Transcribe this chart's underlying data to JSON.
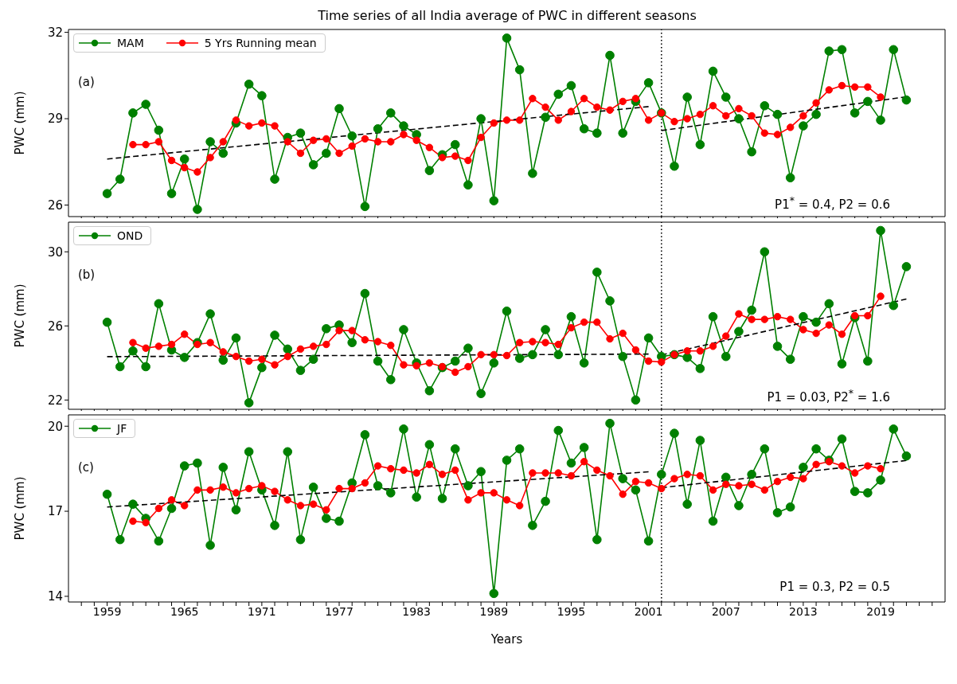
{
  "chart_data": [
    {
      "type": "line",
      "title": "Time series of all India average of PWC in different seasons",
      "ylabel": "PWC (mm)",
      "x": [
        1959,
        1960,
        1961,
        1962,
        1963,
        1964,
        1965,
        1966,
        1967,
        1968,
        1969,
        1970,
        1971,
        1972,
        1973,
        1974,
        1975,
        1976,
        1977,
        1978,
        1979,
        1980,
        1981,
        1982,
        1983,
        1984,
        1985,
        1986,
        1987,
        1988,
        1989,
        1990,
        1991,
        1992,
        1993,
        1994,
        1995,
        1996,
        1997,
        1998,
        1999,
        2000,
        2001,
        2002,
        2003,
        2004,
        2005,
        2006,
        2007,
        2008,
        2009,
        2010,
        2011,
        2012,
        2013,
        2014,
        2015,
        2016,
        2017,
        2018,
        2019,
        2020,
        2021
      ],
      "series": [
        {
          "name": "MAM",
          "color": "#008000",
          "marker": "circle",
          "values": [
            26.4,
            26.9,
            29.2,
            29.5,
            28.6,
            26.4,
            27.6,
            25.85,
            28.2,
            27.8,
            28.85,
            30.2,
            29.8,
            26.9,
            28.35,
            28.5,
            27.4,
            27.8,
            29.35,
            28.4,
            25.95,
            28.65,
            29.2,
            28.75,
            28.45,
            27.2,
            27.75,
            28.1,
            26.7,
            29.0,
            26.15,
            31.8,
            30.7,
            27.1,
            29.05,
            29.85,
            30.15,
            28.65,
            28.5,
            31.2,
            28.5,
            29.6,
            30.25,
            29.2,
            27.35,
            29.75,
            28.1,
            30.65,
            29.75,
            29.0,
            27.85,
            29.45,
            29.15,
            26.95,
            28.75,
            29.15,
            31.35,
            31.4,
            29.2,
            29.6,
            28.95,
            31.4,
            29.65
          ]
        },
        {
          "name": "5 Yrs Running mean",
          "color": "#ff0000",
          "marker": "circle",
          "x": [
            1961,
            1962,
            1963,
            1964,
            1965,
            1966,
            1967,
            1968,
            1969,
            1970,
            1971,
            1972,
            1973,
            1974,
            1975,
            1976,
            1977,
            1978,
            1979,
            1980,
            1981,
            1982,
            1983,
            1984,
            1985,
            1986,
            1987,
            1988,
            1989,
            1990,
            1991,
            1992,
            1993,
            1994,
            1995,
            1996,
            1997,
            1998,
            1999,
            2000,
            2001,
            2002,
            2003,
            2004,
            2005,
            2006,
            2007,
            2008,
            2009,
            2010,
            2011,
            2012,
            2013,
            2014,
            2015,
            2016,
            2017,
            2018,
            2019
          ],
          "values": [
            28.1,
            28.1,
            28.2,
            27.55,
            27.3,
            27.15,
            27.65,
            28.2,
            28.95,
            28.75,
            28.85,
            28.75,
            28.2,
            27.8,
            28.25,
            28.3,
            27.8,
            28.05,
            28.3,
            28.2,
            28.2,
            28.45,
            28.25,
            28.0,
            27.65,
            27.7,
            27.55,
            28.35,
            28.85,
            28.95,
            28.95,
            29.7,
            29.4,
            28.95,
            29.25,
            29.7,
            29.4,
            29.3,
            29.6,
            29.7,
            28.95,
            29.2,
            28.9,
            29.0,
            29.15,
            29.45,
            29.1,
            29.35,
            29.1,
            28.5,
            28.45,
            28.7,
            29.1,
            29.55,
            30.0,
            30.15,
            30.1,
            30.1,
            29.75
          ]
        },
        {
          "color": "#000000",
          "marker": "none",
          "line_style": "dashed",
          "x": [
            1959,
            2001
          ],
          "values": [
            27.6,
            29.42
          ]
        },
        {
          "color": "#000000",
          "marker": "none",
          "line_style": "dashed",
          "x": [
            2002,
            2021
          ],
          "values": [
            28.59,
            29.76
          ]
        }
      ],
      "ylim": [
        25.6,
        32.1
      ],
      "yticks": [
        26,
        29,
        32
      ],
      "xlim": [
        1956,
        2024
      ],
      "xticks": [
        {
          "value": 1957,
          "label": null
        },
        {
          "value": 1958,
          "label": null
        },
        1959,
        {
          "value": 1960,
          "label": null
        },
        {
          "value": 1961,
          "label": null
        },
        {
          "value": 1962,
          "label": null
        },
        {
          "value": 1963,
          "label": null
        },
        {
          "value": 1964,
          "label": null
        },
        1965,
        {
          "value": 1966,
          "label": null
        },
        {
          "value": 1967,
          "label": null
        },
        {
          "value": 1968,
          "label": null
        },
        {
          "value": 1969,
          "label": null
        },
        {
          "value": 1970,
          "label": null
        },
        1971,
        {
          "value": 1972,
          "label": null
        },
        {
          "value": 1973,
          "label": null
        },
        {
          "value": 1974,
          "label": null
        },
        {
          "value": 1975,
          "label": null
        },
        {
          "value": 1976,
          "label": null
        },
        1977,
        {
          "value": 1978,
          "label": null
        },
        {
          "value": 1979,
          "label": null
        },
        {
          "value": 1980,
          "label": null
        },
        {
          "value": 1981,
          "label": null
        },
        {
          "value": 1982,
          "label": null
        },
        1983,
        {
          "value": 1984,
          "label": null
        },
        {
          "value": 1985,
          "label": null
        },
        {
          "value": 1986,
          "label": null
        },
        {
          "value": 1987,
          "label": null
        },
        {
          "value": 1988,
          "label": null
        },
        1989,
        {
          "value": 1990,
          "label": null
        },
        {
          "value": 1991,
          "label": null
        },
        {
          "value": 1992,
          "label": null
        },
        {
          "value": 1993,
          "label": null
        },
        {
          "value": 1994,
          "label": null
        },
        1995,
        {
          "value": 1996,
          "label": null
        },
        {
          "value": 1997,
          "label": null
        },
        {
          "value": 1998,
          "label": null
        },
        {
          "value": 1999,
          "label": null
        },
        {
          "value": 2000,
          "label": null
        },
        2001,
        {
          "value": 2002,
          "label": null
        },
        {
          "value": 2003,
          "label": null
        },
        {
          "value": 2004,
          "label": null
        },
        {
          "value": 2005,
          "label": null
        },
        {
          "value": 2006,
          "label": null
        },
        2007,
        {
          "value": 2008,
          "label": null
        },
        {
          "value": 2009,
          "label": null
        },
        {
          "value": 2010,
          "label": null
        },
        {
          "value": 2011,
          "label": null
        },
        {
          "value": 2012,
          "label": null
        },
        2013,
        {
          "value": 2014,
          "label": null
        },
        {
          "value": 2015,
          "label": null
        },
        {
          "value": 2016,
          "label": null
        },
        {
          "value": 2017,
          "label": null
        },
        {
          "value": 2018,
          "label": null
        },
        2019,
        {
          "value": 2020,
          "label": null
        },
        {
          "value": 2021,
          "label": null
        },
        {
          "value": 2022,
          "label": null
        },
        {
          "value": 2023,
          "label": null
        }
      ],
      "ref_lines": [
        {
          "axis": "x",
          "value": 2002,
          "color": "#000000",
          "line_style": "dotted"
        }
      ],
      "annotations": [
        "(a)",
        "P1$^{*}$ = 0.4, P2 = 0.6"
      ],
      "legend": "top left",
      "tick_labels": "y"
    },
    {
      "type": "line",
      "ylabel": "PWC (mm)",
      "x": [
        1959,
        1960,
        1961,
        1962,
        1963,
        1964,
        1965,
        1966,
        1967,
        1968,
        1969,
        1970,
        1971,
        1972,
        1973,
        1974,
        1975,
        1976,
        1977,
        1978,
        1979,
        1980,
        1981,
        1982,
        1983,
        1984,
        1985,
        1986,
        1987,
        1988,
        1989,
        1990,
        1991,
        1992,
        1993,
        1994,
        1995,
        1996,
        1997,
        1998,
        1999,
        2000,
        2001,
        2002,
        2003,
        2004,
        2005,
        2006,
        2007,
        2008,
        2009,
        2010,
        2011,
        2012,
        2013,
        2014,
        2015,
        2016,
        2017,
        2018,
        2019,
        2020,
        2021
      ],
      "series": [
        {
          "name": "OND",
          "color": "#008000",
          "marker": "circle",
          "values": [
            26.2,
            23.8,
            24.65,
            23.8,
            27.2,
            24.7,
            24.3,
            25.1,
            26.65,
            24.15,
            25.35,
            21.85,
            23.75,
            25.5,
            24.75,
            23.6,
            24.2,
            25.85,
            26.05,
            25.1,
            27.75,
            24.1,
            23.1,
            25.8,
            24.0,
            22.5,
            23.75,
            24.1,
            24.8,
            22.35,
            24.0,
            26.8,
            24.25,
            24.45,
            25.8,
            24.45,
            26.5,
            24.0,
            28.9,
            27.35,
            24.35,
            22.0,
            25.35,
            24.35,
            24.45,
            24.3,
            23.7,
            26.5,
            24.35,
            25.7,
            26.85,
            30.0,
            24.9,
            24.2,
            26.5,
            26.2,
            27.2,
            23.95,
            26.45,
            24.1,
            31.15,
            27.1,
            29.2
          ]
        },
        {
          "color": "#ff0000",
          "marker": "circle",
          "x": [
            1961,
            1962,
            1963,
            1964,
            1965,
            1966,
            1967,
            1968,
            1969,
            1970,
            1971,
            1972,
            1973,
            1974,
            1975,
            1976,
            1977,
            1978,
            1979,
            1980,
            1981,
            1982,
            1983,
            1984,
            1985,
            1986,
            1987,
            1988,
            1989,
            1990,
            1991,
            1992,
            1993,
            1994,
            1995,
            1996,
            1997,
            1998,
            1999,
            2000,
            2001,
            2002,
            2003,
            2004,
            2005,
            2006,
            2007,
            2008,
            2009,
            2010,
            2011,
            2012,
            2013,
            2014,
            2015,
            2016,
            2017,
            2018,
            2019
          ],
          "values": [
            25.1,
            24.8,
            24.9,
            25.0,
            25.55,
            25.0,
            25.1,
            24.6,
            24.35,
            24.1,
            24.2,
            23.9,
            24.35,
            24.75,
            24.9,
            25.0,
            25.75,
            25.75,
            25.25,
            25.15,
            24.95,
            23.9,
            23.85,
            24.0,
            23.8,
            23.5,
            23.8,
            24.45,
            24.45,
            24.4,
            25.1,
            25.15,
            25.1,
            25.0,
            25.9,
            26.2,
            26.2,
            25.3,
            25.6,
            24.7,
            24.1,
            24.05,
            24.45,
            24.65,
            24.65,
            24.9,
            25.45,
            26.65,
            26.35,
            26.35,
            26.5,
            26.35,
            25.8,
            25.6,
            26.05,
            25.55,
            26.55,
            26.55,
            27.6
          ]
        },
        {
          "color": "#000000",
          "marker": "none",
          "line_style": "dashed",
          "x": [
            1959,
            2001
          ],
          "values": [
            24.34,
            24.48
          ]
        },
        {
          "color": "#000000",
          "marker": "none",
          "line_style": "dashed",
          "x": [
            2002,
            2021
          ],
          "values": [
            24.43,
            27.45
          ]
        }
      ],
      "ylim": [
        21.5,
        31.6
      ],
      "yticks": [
        22,
        26,
        30
      ],
      "xlim": [
        1956,
        2024
      ],
      "xticks": [
        {
          "value": 1957,
          "label": null
        },
        {
          "value": 1958,
          "label": null
        },
        1959,
        {
          "value": 1960,
          "label": null
        },
        {
          "value": 1961,
          "label": null
        },
        {
          "value": 1962,
          "label": null
        },
        {
          "value": 1963,
          "label": null
        },
        {
          "value": 1964,
          "label": null
        },
        1965,
        {
          "value": 1966,
          "label": null
        },
        {
          "value": 1967,
          "label": null
        },
        {
          "value": 1968,
          "label": null
        },
        {
          "value": 1969,
          "label": null
        },
        {
          "value": 1970,
          "label": null
        },
        1971,
        {
          "value": 1972,
          "label": null
        },
        {
          "value": 1973,
          "label": null
        },
        {
          "value": 1974,
          "label": null
        },
        {
          "value": 1975,
          "label": null
        },
        {
          "value": 1976,
          "label": null
        },
        1977,
        {
          "value": 1978,
          "label": null
        },
        {
          "value": 1979,
          "label": null
        },
        {
          "value": 1980,
          "label": null
        },
        {
          "value": 1981,
          "label": null
        },
        {
          "value": 1982,
          "label": null
        },
        1983,
        {
          "value": 1984,
          "label": null
        },
        {
          "value": 1985,
          "label": null
        },
        {
          "value": 1986,
          "label": null
        },
        {
          "value": 1987,
          "label": null
        },
        {
          "value": 1988,
          "label": null
        },
        1989,
        {
          "value": 1990,
          "label": null
        },
        {
          "value": 1991,
          "label": null
        },
        {
          "value": 1992,
          "label": null
        },
        {
          "value": 1993,
          "label": null
        },
        {
          "value": 1994,
          "label": null
        },
        1995,
        {
          "value": 1996,
          "label": null
        },
        {
          "value": 1997,
          "label": null
        },
        {
          "value": 1998,
          "label": null
        },
        {
          "value": 1999,
          "label": null
        },
        {
          "value": 2000,
          "label": null
        },
        2001,
        {
          "value": 2002,
          "label": null
        },
        {
          "value": 2003,
          "label": null
        },
        {
          "value": 2004,
          "label": null
        },
        {
          "value": 2005,
          "label": null
        },
        {
          "value": 2006,
          "label": null
        },
        2007,
        {
          "value": 2008,
          "label": null
        },
        {
          "value": 2009,
          "label": null
        },
        {
          "value": 2010,
          "label": null
        },
        {
          "value": 2011,
          "label": null
        },
        {
          "value": 2012,
          "label": null
        },
        2013,
        {
          "value": 2014,
          "label": null
        },
        {
          "value": 2015,
          "label": null
        },
        {
          "value": 2016,
          "label": null
        },
        {
          "value": 2017,
          "label": null
        },
        {
          "value": 2018,
          "label": null
        },
        2019,
        {
          "value": 2020,
          "label": null
        },
        {
          "value": 2021,
          "label": null
        },
        {
          "value": 2022,
          "label": null
        },
        {
          "value": 2023,
          "label": null
        }
      ],
      "ref_lines": [
        {
          "axis": "x",
          "value": 2002,
          "color": "#000000",
          "line_style": "dotted"
        }
      ],
      "annotations": [
        "(b)",
        "P1 = 0.03, P2$^{*}$ = 1.6"
      ],
      "legend": "top left",
      "tick_labels": "y"
    },
    {
      "type": "line",
      "ylabel": "PWC (mm)",
      "xlabel": "Years",
      "x": [
        1959,
        1960,
        1961,
        1962,
        1963,
        1964,
        1965,
        1966,
        1967,
        1968,
        1969,
        1970,
        1971,
        1972,
        1973,
        1974,
        1975,
        1976,
        1977,
        1978,
        1979,
        1980,
        1981,
        1982,
        1983,
        1984,
        1985,
        1986,
        1987,
        1988,
        1989,
        1990,
        1991,
        1992,
        1993,
        1994,
        1995,
        1996,
        1997,
        1998,
        1999,
        2000,
        2001,
        2002,
        2003,
        2004,
        2005,
        2006,
        2007,
        2008,
        2009,
        2010,
        2011,
        2012,
        2013,
        2014,
        2015,
        2016,
        2017,
        2018,
        2019,
        2020,
        2021
      ],
      "series": [
        {
          "name": "JF",
          "color": "#008000",
          "marker": "circle",
          "values": [
            17.6,
            16.0,
            17.25,
            16.75,
            15.95,
            17.1,
            18.6,
            18.7,
            15.8,
            18.55,
            17.05,
            19.1,
            17.75,
            16.5,
            19.1,
            16.0,
            17.85,
            16.75,
            16.65,
            18.0,
            19.7,
            17.9,
            17.65,
            19.9,
            17.5,
            19.35,
            17.45,
            19.2,
            17.9,
            18.4,
            14.1,
            18.8,
            19.2,
            16.5,
            17.35,
            19.85,
            18.7,
            19.25,
            16.0,
            20.1,
            18.15,
            17.75,
            15.95,
            18.3,
            19.75,
            17.25,
            19.5,
            16.65,
            18.2,
            17.2,
            18.3,
            19.2,
            16.95,
            17.15,
            18.55,
            19.2,
            18.8,
            19.55,
            17.7,
            17.65,
            18.1,
            19.9,
            18.95
          ]
        },
        {
          "color": "#ff0000",
          "marker": "circle",
          "x": [
            1961,
            1962,
            1963,
            1964,
            1965,
            1966,
            1967,
            1968,
            1969,
            1970,
            1971,
            1972,
            1973,
            1974,
            1975,
            1976,
            1977,
            1978,
            1979,
            1980,
            1981,
            1982,
            1983,
            1984,
            1985,
            1986,
            1987,
            1988,
            1989,
            1990,
            1991,
            1992,
            1993,
            1994,
            1995,
            1996,
            1997,
            1998,
            1999,
            2000,
            2001,
            2002,
            2003,
            2004,
            2005,
            2006,
            2007,
            2008,
            2009,
            2010,
            2011,
            2012,
            2013,
            2014,
            2015,
            2016,
            2017,
            2018,
            2019
          ],
          "values": [
            16.65,
            16.6,
            17.1,
            17.4,
            17.2,
            17.75,
            17.75,
            17.85,
            17.65,
            17.8,
            17.9,
            17.7,
            17.4,
            17.2,
            17.25,
            17.05,
            17.8,
            17.8,
            18.0,
            18.6,
            18.5,
            18.45,
            18.35,
            18.65,
            18.3,
            18.45,
            17.4,
            17.65,
            17.65,
            17.4,
            17.2,
            18.35,
            18.35,
            18.35,
            18.25,
            18.75,
            18.45,
            18.25,
            17.6,
            18.05,
            18.0,
            17.8,
            18.15,
            18.3,
            18.25,
            17.75,
            17.95,
            17.9,
            17.95,
            17.75,
            18.05,
            18.2,
            18.15,
            18.65,
            18.75,
            18.6,
            18.35,
            18.6,
            18.5
          ]
        },
        {
          "color": "#000000",
          "marker": "none",
          "line_style": "dashed",
          "x": [
            1959,
            2001
          ],
          "values": [
            17.15,
            18.39
          ]
        },
        {
          "color": "#000000",
          "marker": "none",
          "line_style": "dashed",
          "x": [
            2002,
            2021
          ],
          "values": [
            17.83,
            18.79
          ]
        }
      ],
      "ylim": [
        13.8,
        20.4
      ],
      "yticks": [
        14,
        17,
        20
      ],
      "xlim": [
        1956,
        2024
      ],
      "xticks": [
        {
          "value": 1957,
          "label": null
        },
        {
          "value": 1958,
          "label": null
        },
        1959,
        {
          "value": 1960,
          "label": null
        },
        {
          "value": 1961,
          "label": null
        },
        {
          "value": 1962,
          "label": null
        },
        {
          "value": 1963,
          "label": null
        },
        {
          "value": 1964,
          "label": null
        },
        1965,
        {
          "value": 1966,
          "label": null
        },
        {
          "value": 1967,
          "label": null
        },
        {
          "value": 1968,
          "label": null
        },
        {
          "value": 1969,
          "label": null
        },
        {
          "value": 1970,
          "label": null
        },
        1971,
        {
          "value": 1972,
          "label": null
        },
        {
          "value": 1973,
          "label": null
        },
        {
          "value": 1974,
          "label": null
        },
        {
          "value": 1975,
          "label": null
        },
        {
          "value": 1976,
          "label": null
        },
        1977,
        {
          "value": 1978,
          "label": null
        },
        {
          "value": 1979,
          "label": null
        },
        {
          "value": 1980,
          "label": null
        },
        {
          "value": 1981,
          "label": null
        },
        {
          "value": 1982,
          "label": null
        },
        1983,
        {
          "value": 1984,
          "label": null
        },
        {
          "value": 1985,
          "label": null
        },
        {
          "value": 1986,
          "label": null
        },
        {
          "value": 1987,
          "label": null
        },
        {
          "value": 1988,
          "label": null
        },
        1989,
        {
          "value": 1990,
          "label": null
        },
        {
          "value": 1991,
          "label": null
        },
        {
          "value": 1992,
          "label": null
        },
        {
          "value": 1993,
          "label": null
        },
        {
          "value": 1994,
          "label": null
        },
        1995,
        {
          "value": 1996,
          "label": null
        },
        {
          "value": 1997,
          "label": null
        },
        {
          "value": 1998,
          "label": null
        },
        {
          "value": 1999,
          "label": null
        },
        {
          "value": 2000,
          "label": null
        },
        2001,
        {
          "value": 2002,
          "label": null
        },
        {
          "value": 2003,
          "label": null
        },
        {
          "value": 2004,
          "label": null
        },
        {
          "value": 2005,
          "label": null
        },
        {
          "value": 2006,
          "label": null
        },
        2007,
        {
          "value": 2008,
          "label": null
        },
        {
          "value": 2009,
          "label": null
        },
        {
          "value": 2010,
          "label": null
        },
        {
          "value": 2011,
          "label": null
        },
        {
          "value": 2012,
          "label": null
        },
        2013,
        {
          "value": 2014,
          "label": null
        },
        {
          "value": 2015,
          "label": null
        },
        {
          "value": 2016,
          "label": null
        },
        {
          "value": 2017,
          "label": null
        },
        {
          "value": 2018,
          "label": null
        },
        2019,
        {
          "value": 2020,
          "label": null
        },
        {
          "value": 2021,
          "label": null
        },
        {
          "value": 2022,
          "label": null
        },
        {
          "value": 2023,
          "label": null
        }
      ],
      "ref_lines": [
        {
          "axis": "x",
          "value": 2002,
          "color": "#000000",
          "line_style": "dotted"
        }
      ],
      "annotations": [
        "(c)",
        "P1 = 0.3, P2 = 0.5"
      ],
      "legend": "top left"
    }
  ]
}
